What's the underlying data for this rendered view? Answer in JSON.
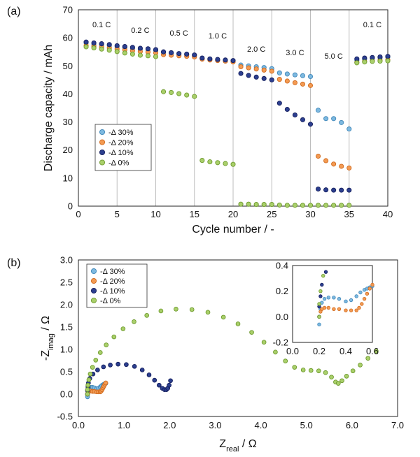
{
  "figure": {
    "label_a": "(a)",
    "label_b": "(b)"
  },
  "colors": {
    "d30": "#7db9e0",
    "d30_edge": "#3f86b8",
    "d20": "#f39a52",
    "d20_edge": "#d06a1e",
    "d10": "#2c3f8f",
    "d10_edge": "#151f5e",
    "d0": "#a9cf6a",
    "d0_edge": "#6e9a2e"
  },
  "chart_data": [
    {
      "type": "scatter",
      "title": "",
      "xlabel": "Cycle number / -",
      "ylabel": "Discharge capacity / mAh",
      "xlim": [
        0,
        40
      ],
      "ylim": [
        0,
        70
      ],
      "xticks": [
        "0",
        "5",
        "10",
        "15",
        "20",
        "25",
        "30",
        "35",
        "40"
      ],
      "yticks": [
        "0",
        "10",
        "20",
        "30",
        "40",
        "50",
        "60",
        "70"
      ],
      "grid": "vertical",
      "legend_position": "left-middle",
      "rate_labels": [
        {
          "text": "0.1 C",
          "x": 3,
          "y": 64.8
        },
        {
          "text": "0.2 C",
          "x": 8,
          "y": 62.8
        },
        {
          "text": "0.5 C",
          "x": 13,
          "y": 61.8
        },
        {
          "text": "1.0 C",
          "x": 18,
          "y": 60.8
        },
        {
          "text": "2.0 C",
          "x": 23,
          "y": 56.0
        },
        {
          "text": "3.0 C",
          "x": 28,
          "y": 54.8
        },
        {
          "text": "5.0 C",
          "x": 33,
          "y": 53.5
        },
        {
          "text": "0.1 C",
          "x": 38,
          "y": 64.8
        }
      ],
      "series": [
        {
          "name": "-Δ 30%",
          "x": [
            1,
            2,
            3,
            4,
            5,
            6,
            7,
            8,
            9,
            10,
            11,
            12,
            13,
            14,
            15,
            16,
            17,
            18,
            19,
            20,
            21,
            22,
            23,
            24,
            25,
            26,
            27,
            28,
            29,
            30,
            31,
            32,
            33,
            34,
            35,
            36,
            37,
            38,
            39,
            40
          ],
          "y": [
            58.2,
            57.8,
            57.5,
            57.2,
            56.8,
            56.5,
            56.2,
            55.9,
            55.7,
            55.4,
            54.8,
            54.5,
            54.2,
            54.0,
            53.7,
            52.6,
            52.3,
            52.1,
            51.9,
            51.6,
            50.3,
            50.0,
            49.7,
            49.4,
            49.0,
            47.5,
            47.1,
            46.8,
            46.5,
            46.2,
            34.2,
            31.2,
            31.2,
            29.8,
            27.5,
            52.0,
            52.4,
            52.7,
            52.9,
            53.1
          ]
        },
        {
          "name": "-Δ 20%",
          "x": [
            1,
            2,
            3,
            4,
            5,
            6,
            7,
            8,
            9,
            10,
            11,
            12,
            13,
            14,
            15,
            16,
            17,
            18,
            19,
            20,
            21,
            22,
            23,
            24,
            25,
            26,
            27,
            28,
            29,
            30,
            31,
            32,
            33,
            34,
            35,
            36,
            37,
            38,
            39,
            40
          ],
          "y": [
            57.3,
            57.0,
            56.7,
            56.4,
            56.0,
            55.7,
            55.4,
            55.1,
            54.9,
            54.6,
            54.0,
            53.8,
            53.6,
            53.4,
            53.2,
            52.4,
            52.1,
            51.9,
            51.7,
            51.4,
            49.7,
            49.3,
            48.9,
            48.5,
            48.1,
            45.2,
            44.6,
            44.0,
            43.5,
            43.0,
            17.8,
            16.2,
            15.0,
            14.2,
            13.6,
            51.3,
            51.6,
            51.8,
            52.0,
            52.2
          ]
        },
        {
          "name": "-Δ 10%",
          "x": [
            1,
            2,
            3,
            4,
            5,
            6,
            7,
            8,
            9,
            10,
            11,
            12,
            13,
            14,
            15,
            16,
            17,
            18,
            19,
            20,
            21,
            22,
            23,
            24,
            25,
            26,
            27,
            28,
            29,
            30,
            31,
            32,
            33,
            34,
            35,
            36,
            37,
            38,
            39,
            40
          ],
          "y": [
            58.5,
            58.2,
            57.9,
            57.6,
            57.2,
            56.9,
            56.6,
            56.3,
            56.1,
            55.8,
            55.0,
            54.7,
            54.4,
            54.2,
            53.9,
            52.8,
            52.5,
            52.3,
            52.1,
            51.9,
            47.3,
            46.6,
            46.0,
            45.5,
            45.0,
            36.7,
            34.5,
            32.5,
            30.8,
            29.2,
            6.1,
            5.8,
            5.7,
            5.7,
            5.7,
            52.5,
            52.8,
            53.0,
            53.2,
            53.4
          ]
        },
        {
          "name": "-Δ  0%",
          "x": [
            1,
            2,
            3,
            4,
            5,
            6,
            7,
            8,
            9,
            10,
            11,
            12,
            13,
            14,
            15,
            16,
            17,
            18,
            19,
            20,
            21,
            22,
            23,
            24,
            25,
            26,
            27,
            28,
            29,
            30,
            31,
            32,
            33,
            34,
            35,
            36,
            37,
            38,
            39,
            40
          ],
          "y": [
            56.8,
            56.4,
            56.0,
            55.6,
            55.1,
            54.6,
            54.2,
            53.8,
            53.6,
            53.3,
            40.8,
            40.5,
            40.1,
            39.6,
            39.1,
            16.3,
            15.8,
            15.5,
            15.2,
            14.9,
            0.7,
            0.7,
            0.6,
            0.6,
            0.6,
            0.4,
            0.3,
            0.3,
            0.3,
            0.3,
            0.3,
            0.3,
            0.3,
            0.3,
            0.3,
            51.1,
            51.4,
            51.6,
            51.7,
            51.8
          ]
        }
      ]
    },
    {
      "type": "scatter",
      "title": "",
      "xlabel": "Zreal / Ω",
      "xlabel_main": "Z",
      "xlabel_sub": "real",
      "xlabel_unit": " / Ω",
      "ylabel": "-Zimag / Ω",
      "ylabel_main": "-Z",
      "ylabel_sub": "imag",
      "ylabel_unit": " / Ω",
      "xlim": [
        0,
        7
      ],
      "ylim": [
        -0.5,
        3.0
      ],
      "xticks": [
        "0.0",
        "1.0",
        "2.0",
        "3.0",
        "4.0",
        "5.0",
        "6.0",
        "7.0"
      ],
      "yticks": [
        "-0.5",
        "0.0",
        "0.5",
        "1.0",
        "1.5",
        "2.0",
        "2.5",
        "3.0"
      ],
      "grid": "none",
      "legend_position": "top-left",
      "series": [
        {
          "name": "-Δ 30%",
          "x": [
            0.2,
            0.2,
            0.21,
            0.22,
            0.24,
            0.27,
            0.31,
            0.35,
            0.4,
            0.44,
            0.48,
            0.51,
            0.54,
            0.56,
            0.58,
            0.6
          ],
          "y": [
            -0.06,
            0.0,
            0.06,
            0.11,
            0.14,
            0.15,
            0.15,
            0.14,
            0.12,
            0.13,
            0.16,
            0.19,
            0.21,
            0.22,
            0.23,
            0.24
          ]
        },
        {
          "name": "-Δ 20%",
          "x": [
            0.2,
            0.21,
            0.22,
            0.24,
            0.27,
            0.31,
            0.35,
            0.4,
            0.44,
            0.48,
            0.5,
            0.52,
            0.54,
            0.56,
            0.58,
            0.6
          ],
          "y": [
            0.0,
            0.04,
            0.06,
            0.07,
            0.07,
            0.06,
            0.06,
            0.05,
            0.05,
            0.05,
            0.07,
            0.1,
            0.14,
            0.18,
            0.22,
            0.25
          ]
        },
        {
          "name": "-Δ 10%",
          "x": [
            0.2,
            0.2,
            0.21,
            0.22,
            0.25,
            0.32,
            0.42,
            0.55,
            0.7,
            0.87,
            1.05,
            1.23,
            1.4,
            1.55,
            1.67,
            1.77,
            1.84,
            1.89,
            1.93,
            1.96,
            1.99,
            2.02
          ],
          "y": [
            0.0,
            0.08,
            0.16,
            0.25,
            0.35,
            0.45,
            0.54,
            0.61,
            0.65,
            0.67,
            0.66,
            0.62,
            0.54,
            0.43,
            0.31,
            0.2,
            0.13,
            0.1,
            0.1,
            0.13,
            0.2,
            0.3
          ]
        },
        {
          "name": "-Δ  0%",
          "x": [
            0.2,
            0.2,
            0.21,
            0.23,
            0.26,
            0.31,
            0.38,
            0.48,
            0.61,
            0.78,
            0.98,
            1.22,
            1.5,
            1.81,
            2.14,
            2.49,
            2.84,
            3.18,
            3.5,
            3.8,
            4.07,
            4.32,
            4.54,
            4.74,
            4.93,
            5.1,
            5.27,
            5.42,
            5.55,
            5.64,
            5.7,
            5.78,
            5.88,
            6.02,
            6.18,
            6.35,
            6.53
          ],
          "y": [
            0.0,
            0.1,
            0.2,
            0.32,
            0.45,
            0.6,
            0.76,
            0.93,
            1.1,
            1.28,
            1.46,
            1.62,
            1.76,
            1.86,
            1.9,
            1.89,
            1.83,
            1.72,
            1.57,
            1.38,
            1.16,
            0.94,
            0.74,
            0.6,
            0.54,
            0.53,
            0.52,
            0.48,
            0.38,
            0.27,
            0.24,
            0.3,
            0.4,
            0.52,
            0.65,
            0.8,
            0.96
          ]
        }
      ],
      "inset": {
        "xlim": [
          0.0,
          0.6
        ],
        "ylim": [
          -0.2,
          0.4
        ],
        "xticks": [
          "0.0",
          "0.2",
          "0.4",
          "0.6"
        ],
        "yticks": [
          "-0.2",
          "0.0",
          "0.2",
          "0.4"
        ]
      }
    }
  ]
}
